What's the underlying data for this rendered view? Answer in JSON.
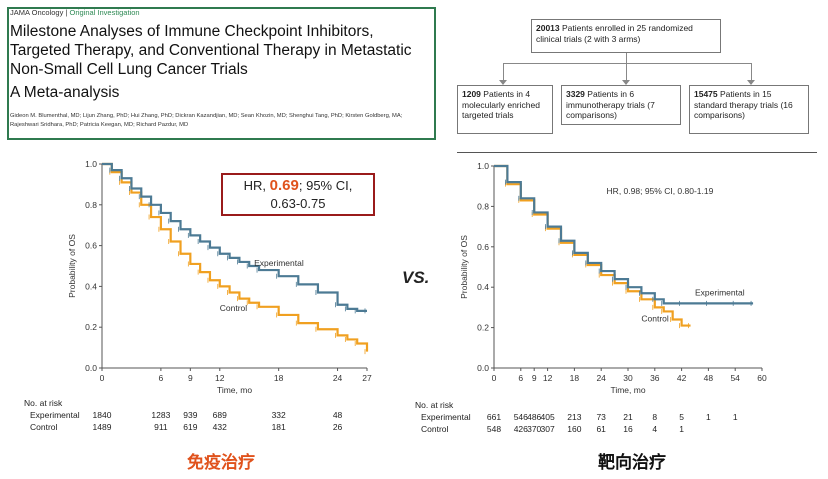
{
  "paper": {
    "journal": "JAMA Oncology",
    "separator": "|",
    "section": "Original Investigation",
    "title": "Milestone Analyses of Immune Checkpoint Inhibitors, Targeted Therapy, and Conventional Therapy in Metastatic Non-Small Cell Lung Cancer Trials",
    "subtitle": "A Meta-analysis",
    "authors": "Gideon M. Blumenthal, MD; Lijun Zhang, PhD; Hui Zhang, PhD; Dickran Kazandjian, MD; Sean Khozin, MD; Shenghui Tang, PhD; Kirsten Goldberg, MA; Rajeshwari Sridhara, PhD; Patricia Keegan, MD; Richard Pazdur, MD"
  },
  "flow": {
    "top": {
      "count": "20013",
      "text": "Patients enrolled in 25 randomized clinical trials (2 with 3 arms)"
    },
    "branches": [
      {
        "count": "1209",
        "text": "Patients in 4 molecularly enriched targeted trials"
      },
      {
        "count": "3329",
        "text": "Patients in 6 immunotherapy trials (7 comparisons)"
      },
      {
        "count": "15475",
        "text": "Patients in 15 standard therapy trials (16 comparisons)"
      }
    ]
  },
  "hr_box": {
    "prefix": "HR,",
    "value": "0.69",
    "suffix": "; 95% CI,",
    "ci": "0.63-0.75"
  },
  "vs_label": "VS.",
  "captions": {
    "left": "免疫治疗",
    "right": "靶向治疗"
  },
  "colors": {
    "experimental": "#4c7a94",
    "control": "#f0a020",
    "caption_left": "#e0521c",
    "caption_right": "#111111"
  },
  "chart_data": [
    {
      "type": "line",
      "xlabel": "Time, mo",
      "ylabel": "Probability of OS",
      "xlim": [
        0,
        27
      ],
      "ylim": [
        0,
        1.0
      ],
      "xticks": [
        0,
        6,
        9,
        12,
        18,
        24,
        27
      ],
      "yticks": [
        0,
        0.2,
        0.4,
        0.6,
        0.8,
        1.0
      ],
      "series": [
        {
          "name": "Experimental",
          "x": [
            0,
            1,
            2,
            3,
            4,
            5,
            6,
            7,
            8,
            9,
            10,
            11,
            12,
            13,
            14,
            15,
            16,
            18,
            20,
            22,
            24,
            25,
            26,
            27
          ],
          "y": [
            1.0,
            0.97,
            0.93,
            0.88,
            0.84,
            0.8,
            0.76,
            0.72,
            0.68,
            0.65,
            0.62,
            0.59,
            0.56,
            0.54,
            0.52,
            0.5,
            0.48,
            0.45,
            0.41,
            0.37,
            0.31,
            0.29,
            0.28,
            0.28
          ]
        },
        {
          "name": "Control",
          "x": [
            0,
            1,
            2,
            3,
            4,
            5,
            6,
            7,
            8,
            9,
            10,
            11,
            12,
            13,
            14,
            15,
            16,
            18,
            20,
            22,
            24,
            25,
            26,
            27
          ],
          "y": [
            1.0,
            0.96,
            0.91,
            0.86,
            0.8,
            0.74,
            0.68,
            0.62,
            0.56,
            0.51,
            0.47,
            0.43,
            0.4,
            0.37,
            0.34,
            0.32,
            0.3,
            0.26,
            0.22,
            0.19,
            0.16,
            0.14,
            0.12,
            0.08
          ]
        }
      ],
      "hr_text": "",
      "risk_table": {
        "title": "No. at risk",
        "rows": [
          {
            "label": "Experimental",
            "values": [
              {
                "x": 0,
                "v": "1840"
              },
              {
                "x": 6,
                "v": "1283"
              },
              {
                "x": 9,
                "v": "939"
              },
              {
                "x": 12,
                "v": "689"
              },
              {
                "x": 18,
                "v": "332"
              },
              {
                "x": 24,
                "v": "48"
              }
            ]
          },
          {
            "label": "Control",
            "values": [
              {
                "x": 0,
                "v": "1489"
              },
              {
                "x": 6,
                "v": "911"
              },
              {
                "x": 9,
                "v": "619"
              },
              {
                "x": 12,
                "v": "432"
              },
              {
                "x": 18,
                "v": "181"
              },
              {
                "x": 24,
                "v": "26"
              }
            ]
          }
        ]
      }
    },
    {
      "type": "line",
      "xlabel": "Time, mo",
      "ylabel": "Probability of OS",
      "xlim": [
        0,
        60
      ],
      "ylim": [
        0,
        1.0
      ],
      "xticks": [
        0,
        6,
        9,
        12,
        18,
        24,
        30,
        36,
        42,
        48,
        54,
        60
      ],
      "yticks": [
        0,
        0.2,
        0.4,
        0.6,
        0.8,
        1.0
      ],
      "hr_text": "HR, 0.98; 95% CI, 0.80-1.19",
      "series": [
        {
          "name": "Experimental",
          "x": [
            0,
            3,
            6,
            9,
            12,
            15,
            18,
            21,
            24,
            27,
            30,
            33,
            36,
            38,
            42,
            48,
            54,
            58
          ],
          "y": [
            1.0,
            0.92,
            0.84,
            0.77,
            0.7,
            0.63,
            0.57,
            0.52,
            0.48,
            0.44,
            0.4,
            0.37,
            0.34,
            0.32,
            0.32,
            0.32,
            0.32,
            0.32
          ]
        },
        {
          "name": "Control",
          "x": [
            0,
            3,
            6,
            9,
            12,
            15,
            18,
            21,
            24,
            27,
            30,
            33,
            36,
            38,
            40,
            42,
            44
          ],
          "y": [
            1.0,
            0.91,
            0.83,
            0.76,
            0.69,
            0.62,
            0.56,
            0.51,
            0.46,
            0.42,
            0.38,
            0.34,
            0.3,
            0.28,
            0.24,
            0.21,
            0.21
          ]
        }
      ],
      "risk_table": {
        "title": "No. at risk",
        "rows": [
          {
            "label": "Experimental",
            "values": [
              {
                "x": 0,
                "v": "661"
              },
              {
                "x": 6,
                "v": "546"
              },
              {
                "x": 9,
                "v": "486"
              },
              {
                "x": 12,
                "v": "405"
              },
              {
                "x": 18,
                "v": "213"
              },
              {
                "x": 24,
                "v": "73"
              },
              {
                "x": 30,
                "v": "21"
              },
              {
                "x": 36,
                "v": "8"
              },
              {
                "x": 42,
                "v": "5"
              },
              {
                "x": 48,
                "v": "1"
              },
              {
                "x": 54,
                "v": "1"
              }
            ]
          },
          {
            "label": "Control",
            "values": [
              {
                "x": 0,
                "v": "548"
              },
              {
                "x": 6,
                "v": "426"
              },
              {
                "x": 9,
                "v": "370"
              },
              {
                "x": 12,
                "v": "307"
              },
              {
                "x": 18,
                "v": "160"
              },
              {
                "x": 24,
                "v": "61"
              },
              {
                "x": 30,
                "v": "16"
              },
              {
                "x": 36,
                "v": "4"
              },
              {
                "x": 42,
                "v": "1"
              }
            ]
          }
        ]
      }
    }
  ]
}
